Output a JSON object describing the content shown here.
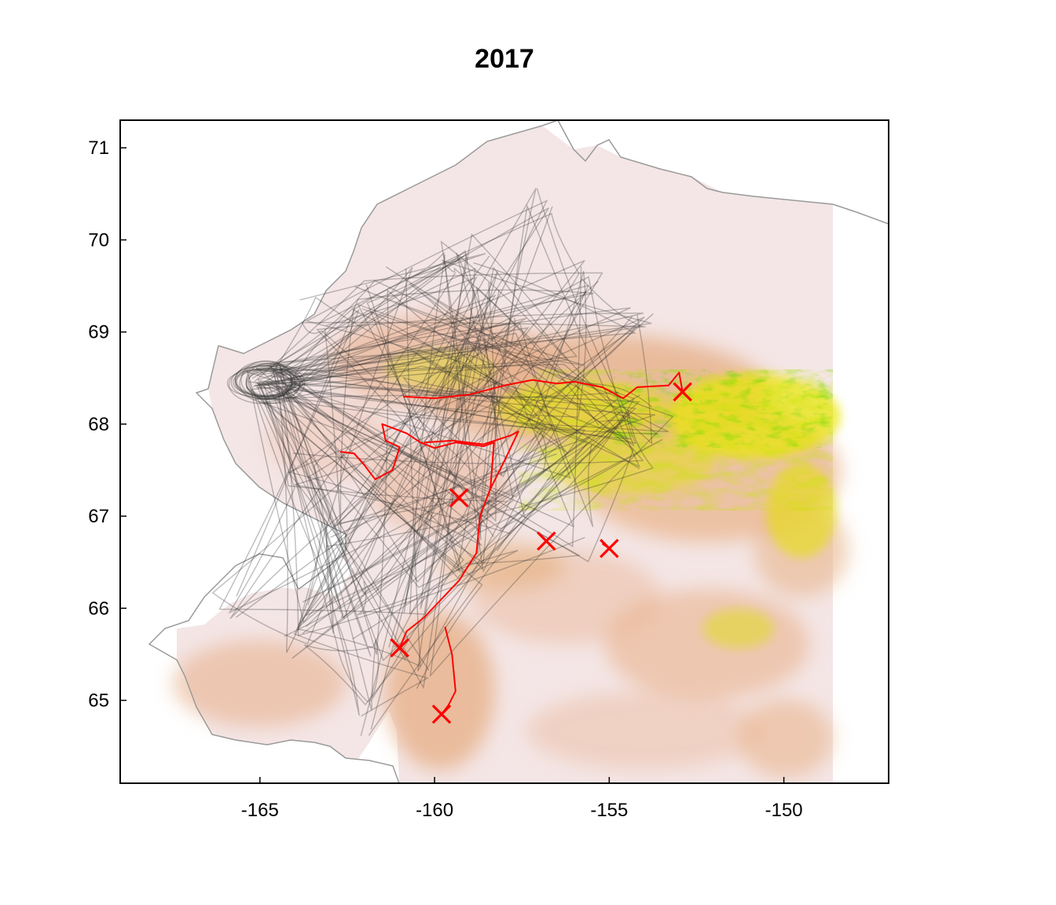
{
  "title": "2017",
  "chart_data": {
    "type": "map",
    "title": "2017",
    "xlim": [
      -169,
      -147
    ],
    "ylim": [
      64.1,
      71.3
    ],
    "x_ticks": [
      {
        "value": -165,
        "label": "-165"
      },
      {
        "value": -160,
        "label": "-160"
      },
      {
        "value": -155,
        "label": "-155"
      },
      {
        "value": -150,
        "label": "-150"
      }
    ],
    "y_ticks": [
      {
        "value": 65,
        "label": "65"
      },
      {
        "value": 66,
        "label": "66"
      },
      {
        "value": 67,
        "label": "67"
      },
      {
        "value": 68,
        "label": "68"
      },
      {
        "value": 69,
        "label": "69"
      },
      {
        "value": 70,
        "label": "70"
      },
      {
        "value": 71,
        "label": "71"
      }
    ],
    "colors": {
      "elevation_low": "#f4e6e6",
      "elevation_mid": "#e8b08c",
      "elevation_high": "#e8e800",
      "elevation_peak": "#2fb400",
      "tracks_background": "#333333",
      "tracks_highlight": "#ff0000",
      "markers": "#ff0000",
      "coastline": "#9a9a9a"
    },
    "markers": [
      {
        "lon": -152.9,
        "lat": 68.35
      },
      {
        "lon": -159.3,
        "lat": 67.2
      },
      {
        "lon": -156.8,
        "lat": 66.73
      },
      {
        "lon": -155.0,
        "lat": 66.65
      },
      {
        "lon": -161.0,
        "lat": 65.57
      },
      {
        "lon": -159.8,
        "lat": 64.85
      }
    ],
    "highlight_tracks": [
      [
        [
          -160.9,
          68.3
        ],
        [
          -160.0,
          68.28
        ],
        [
          -159.0,
          68.32
        ],
        [
          -158.0,
          68.42
        ],
        [
          -157.2,
          68.48
        ],
        [
          -156.5,
          68.44
        ],
        [
          -156.0,
          68.46
        ],
        [
          -155.2,
          68.4
        ],
        [
          -154.6,
          68.28
        ],
        [
          -154.2,
          68.4
        ],
        [
          -153.3,
          68.42
        ],
        [
          -153.0,
          68.56
        ],
        [
          -152.9,
          68.35
        ]
      ],
      [
        [
          -162.7,
          67.7
        ],
        [
          -162.3,
          67.68
        ],
        [
          -162.0,
          67.55
        ],
        [
          -161.7,
          67.4
        ],
        [
          -161.2,
          67.5
        ],
        [
          -161.0,
          67.75
        ],
        [
          -161.4,
          67.82
        ],
        [
          -161.5,
          68.0
        ],
        [
          -160.8,
          67.9
        ],
        [
          -160.4,
          67.8
        ],
        [
          -160.0,
          67.74
        ],
        [
          -159.4,
          67.8
        ],
        [
          -158.6,
          67.76
        ],
        [
          -158.3,
          67.8
        ],
        [
          -158.4,
          67.3
        ],
        [
          -158.7,
          67.0
        ],
        [
          -158.8,
          66.6
        ],
        [
          -159.3,
          66.3
        ],
        [
          -160.3,
          65.9
        ],
        [
          -160.8,
          65.75
        ],
        [
          -161.0,
          65.57
        ]
      ],
      [
        [
          -160.3,
          67.8
        ],
        [
          -159.5,
          67.82
        ],
        [
          -158.6,
          67.78
        ],
        [
          -157.8,
          67.88
        ],
        [
          -157.6,
          67.92
        ],
        [
          -158.0,
          67.6
        ],
        [
          -158.4,
          67.3
        ]
      ],
      [
        [
          -159.7,
          65.8
        ],
        [
          -159.5,
          65.5
        ],
        [
          -159.4,
          65.1
        ],
        [
          -159.6,
          64.95
        ],
        [
          -159.8,
          64.85
        ]
      ],
      [
        [
          -155.2,
          66.7
        ],
        [
          -155.0,
          66.65
        ]
      ]
    ]
  }
}
